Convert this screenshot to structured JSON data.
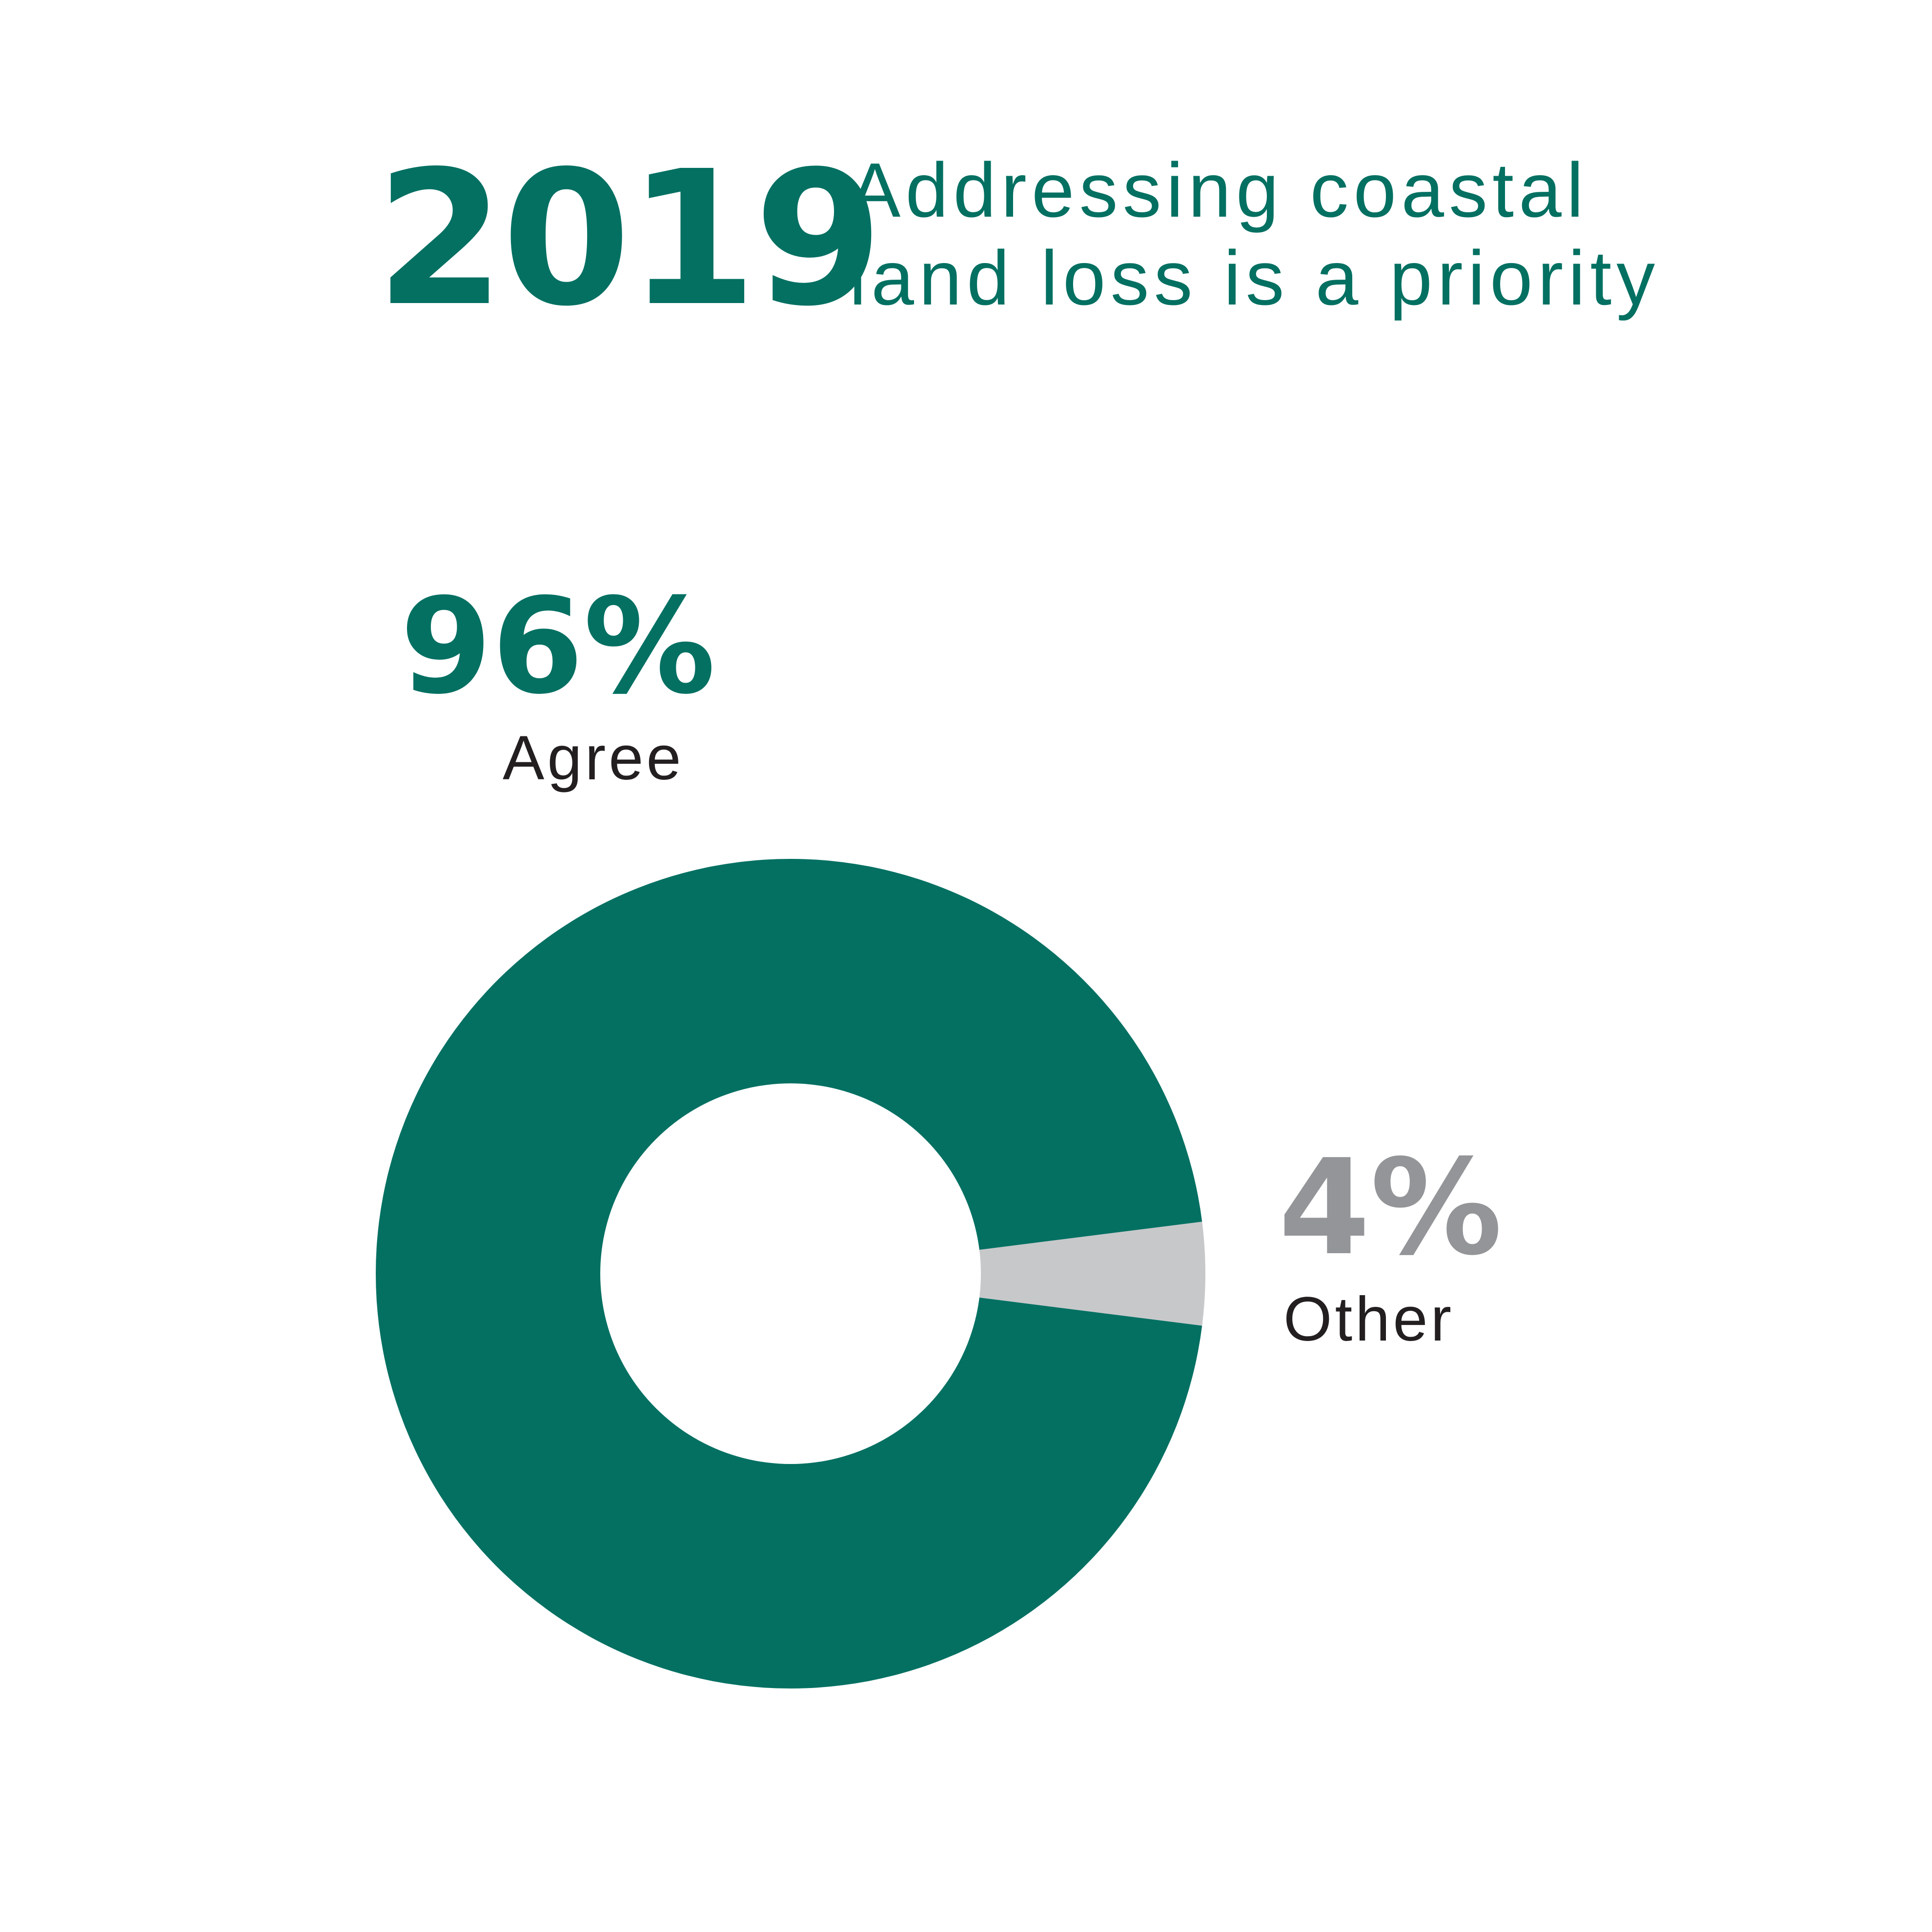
{
  "header": {
    "year": "2019",
    "title_line1": "Addressing coastal",
    "title_line2": "land loss is a priority"
  },
  "colors": {
    "agree": "#037062",
    "other": "#c7c8ca",
    "other_text": "#939598",
    "label_text": "#231f20"
  },
  "chart_data": {
    "type": "pie",
    "donut": true,
    "title": "Addressing coastal land loss is a priority",
    "categories": [
      "Agree",
      "Other"
    ],
    "values": [
      96,
      4
    ],
    "value_labels": [
      "96%",
      "4%"
    ],
    "legend": "none"
  }
}
